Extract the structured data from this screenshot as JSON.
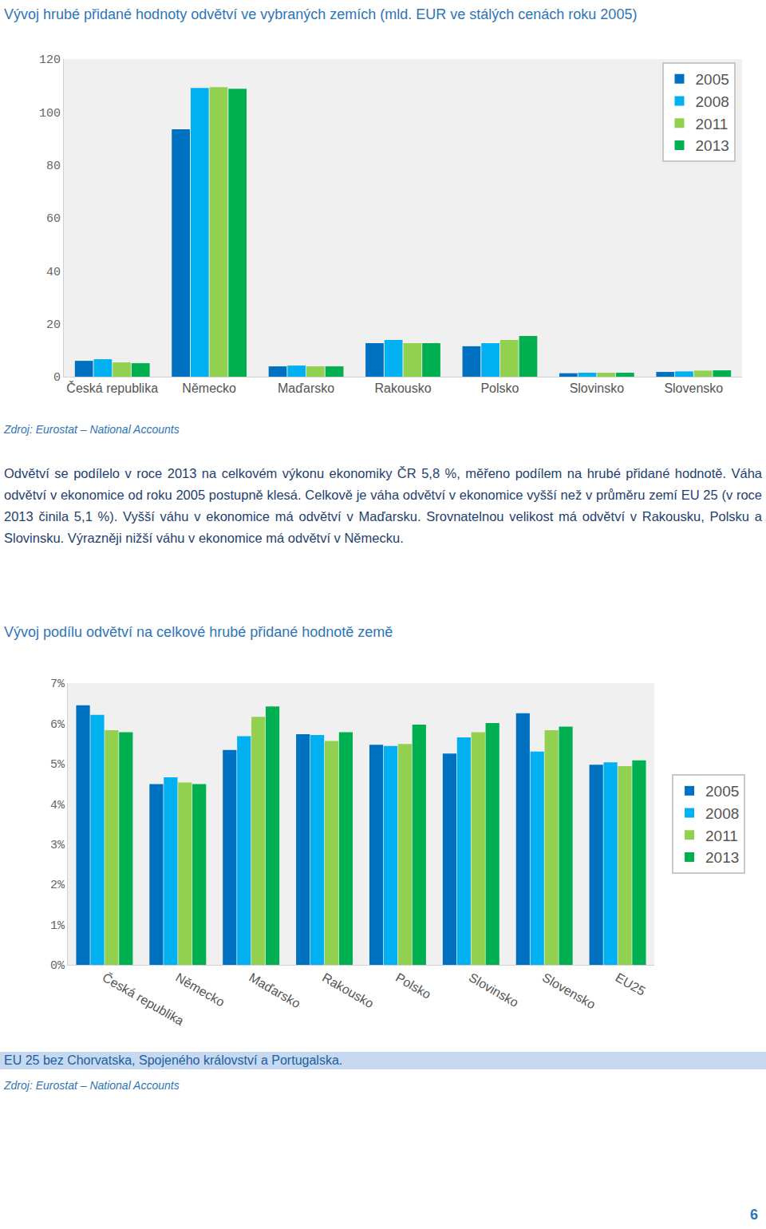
{
  "chart_data": [
    {
      "type": "bar",
      "title": "Vývoj hrubé přidané hodnoty odvětví ve vybraných zemích (mld. EUR ve stálých cenách roku 2005)",
      "categories": [
        "Česká republika",
        "Německo",
        "Maďarsko",
        "Rakousko",
        "Polsko",
        "Slovinsko",
        "Slovensko"
      ],
      "series": [
        {
          "name": "2005",
          "color": "#0070c0",
          "values": [
            6.0,
            93.5,
            3.9,
            12.7,
            11.5,
            1.3,
            1.8
          ]
        },
        {
          "name": "2008",
          "color": "#00b0f0",
          "values": [
            6.6,
            109.1,
            4.2,
            13.9,
            12.7,
            1.5,
            2.0
          ]
        },
        {
          "name": "2011",
          "color": "#92d050",
          "values": [
            5.4,
            109.4,
            3.9,
            12.7,
            13.9,
            1.5,
            2.3
          ]
        },
        {
          "name": "2013",
          "color": "#00b050",
          "values": [
            5.1,
            108.8,
            3.9,
            12.7,
            15.4,
            1.5,
            2.4
          ]
        }
      ],
      "ylim": [
        0,
        120
      ],
      "yticks": [
        0,
        20,
        40,
        60,
        80,
        100,
        120
      ],
      "grid": false,
      "legend": "upper right",
      "annotations": [
        "Zdroj: Eurostat – National Accounts"
      ]
    },
    {
      "type": "bar",
      "title": "Vývoj podílu odvětví na celkové hrubé přidané hodnotě země",
      "categories": [
        "Česká republika",
        "Německo",
        "Maďarsko",
        "Rakousko",
        "Polsko",
        "Slovinsko",
        "Slovensko",
        "EU25"
      ],
      "series": [
        {
          "name": "2005",
          "color": "#0070c0",
          "values": [
            6.45,
            4.49,
            5.34,
            5.73,
            5.47,
            5.25,
            6.25,
            4.97
          ]
        },
        {
          "name": "2008",
          "color": "#00b0f0",
          "values": [
            6.21,
            4.66,
            5.68,
            5.71,
            5.44,
            5.65,
            5.3,
            5.03
          ]
        },
        {
          "name": "2011",
          "color": "#92d050",
          "values": [
            5.83,
            4.53,
            6.16,
            5.56,
            5.49,
            5.78,
            5.83,
            4.94
          ]
        },
        {
          "name": "2013",
          "color": "#00b050",
          "values": [
            5.78,
            4.49,
            6.42,
            5.78,
            5.97,
            6.01,
            5.92,
            5.08
          ]
        }
      ],
      "ylim": [
        0,
        7
      ],
      "yticks": [
        {
          "value": 0,
          "label": "0%"
        },
        {
          "value": 1,
          "label": "1%"
        },
        {
          "value": 2,
          "label": "2%"
        },
        {
          "value": 3,
          "label": "3%"
        },
        {
          "value": 4,
          "label": "4%"
        },
        {
          "value": 5,
          "label": "5%"
        },
        {
          "value": 6,
          "label": "6%"
        },
        {
          "value": 7,
          "label": "7%"
        }
      ],
      "grid": false,
      "legend": "right",
      "annotations": [
        "EU 25 bez Chorvatska, Spojeného království a Portugalska.",
        "Zdroj: Eurostat – National Accounts"
      ]
    }
  ],
  "document": {
    "paragraph": "Odvětví se podílelo v roce 2013 na celkovém výkonu ekonomiky ČR 5,8 %, měřeno podílem na hrubé přidané hodnotě. Váha odvětví v ekonomice od roku 2005 postupně klesá. Celkově je váha odvětví v ekonomice vyšší než v průměru zemí EU 25 (v roce 2013 činila 5,1 %). Vyšší váhu v ekonomice má odvětví v Maďarsku. Srovnatelnou velikost má odvětví v Rakousku, Polsku a Slovinsku. Výrazněji nižší váhu v ekonomice má odvětví v Německu.",
    "page_number": 6
  }
}
